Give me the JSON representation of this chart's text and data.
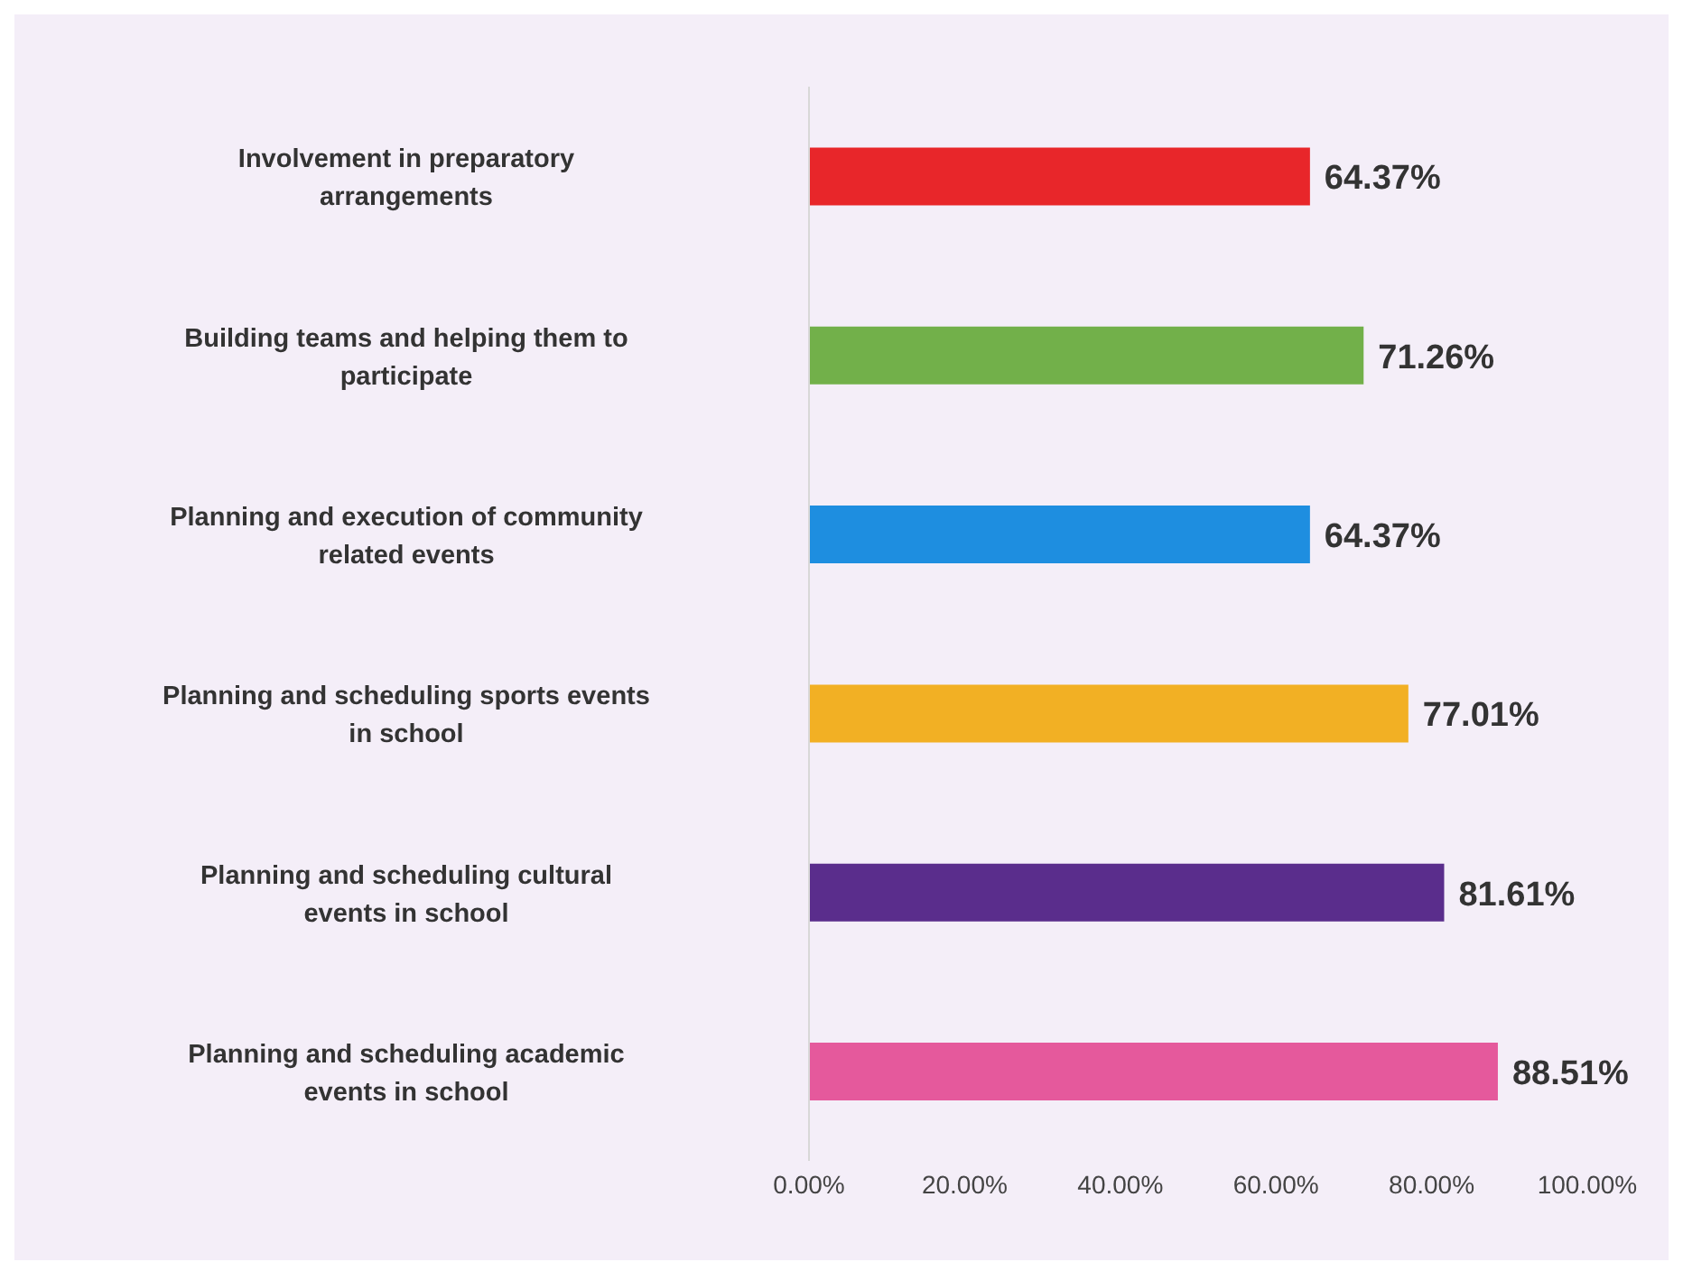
{
  "chart_data": {
    "type": "bar",
    "orientation": "horizontal",
    "categories": [
      "Involvement in preparatory arrangements",
      "Building teams and helping them to participate",
      "Planning and execution of community related events",
      "Planning and scheduling sports events in school",
      "Planning and scheduling cultural events in school",
      "Planning and scheduling academic events in school"
    ],
    "values": [
      64.37,
      71.26,
      64.37,
      77.01,
      81.61,
      88.51
    ],
    "colors": [
      "#e8262a",
      "#72b04a",
      "#1e8ee0",
      "#f2b024",
      "#5a2d8c",
      "#e5599c"
    ],
    "value_labels": [
      "64.37%",
      "71.26%",
      "64.37%",
      "77.01%",
      "81.61%",
      "88.51%"
    ],
    "xlim": [
      0,
      100
    ],
    "xticks": [
      {
        "value": 0,
        "label": "0.00%"
      },
      {
        "value": 20,
        "label": "20.00%"
      },
      {
        "value": 40,
        "label": "40.00%"
      },
      {
        "value": 60,
        "label": "60.00%"
      },
      {
        "value": 80,
        "label": "80.00%"
      },
      {
        "value": 100,
        "label": "100.00%"
      }
    ],
    "grid": false
  }
}
